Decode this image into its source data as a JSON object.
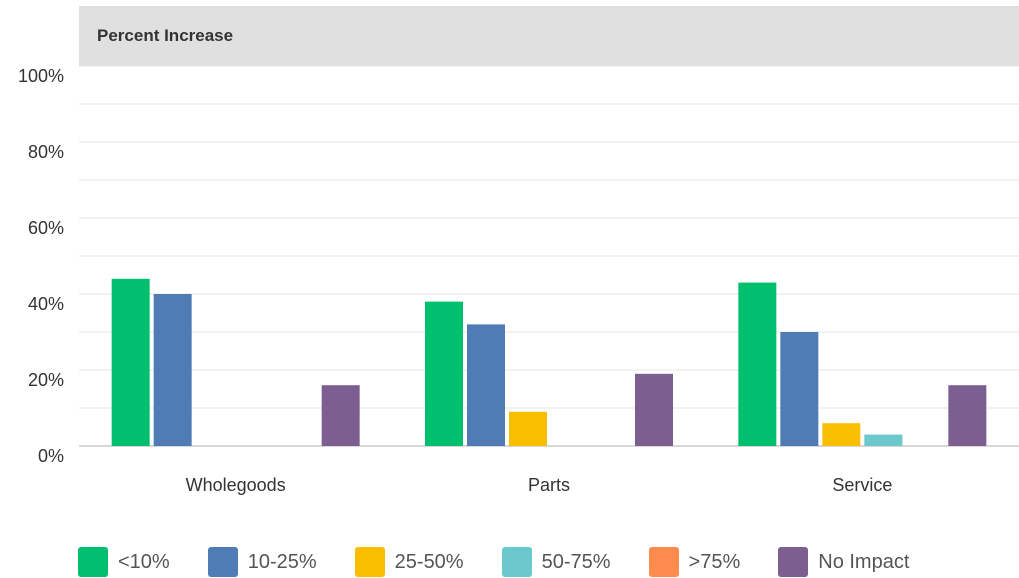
{
  "chart_data": {
    "type": "bar",
    "title": "Percent Increase",
    "categories": [
      "Wholegoods",
      "Parts",
      "Service"
    ],
    "yticks": [
      "0%",
      "20%",
      "40%",
      "60%",
      "80%",
      "100%"
    ],
    "ylim": [
      0,
      100
    ],
    "grid": true,
    "legend_position": "bottom",
    "series": [
      {
        "name": "<10%",
        "color": "#00bf6f",
        "values": [
          44,
          38,
          43
        ]
      },
      {
        "name": "10-25%",
        "color": "#507cb6",
        "values": [
          40,
          32,
          30
        ]
      },
      {
        "name": "25-50%",
        "color": "#f9be00",
        "values": [
          0,
          9,
          6
        ]
      },
      {
        "name": "50-75%",
        "color": "#6bc8cd",
        "values": [
          0,
          0,
          3
        ]
      },
      {
        "name": ">75%",
        "color": "#ff8b4f",
        "values": [
          0,
          0,
          0
        ]
      },
      {
        "name": "No Impact",
        "color": "#7d5e90",
        "values": [
          16,
          19,
          16
        ]
      }
    ]
  }
}
